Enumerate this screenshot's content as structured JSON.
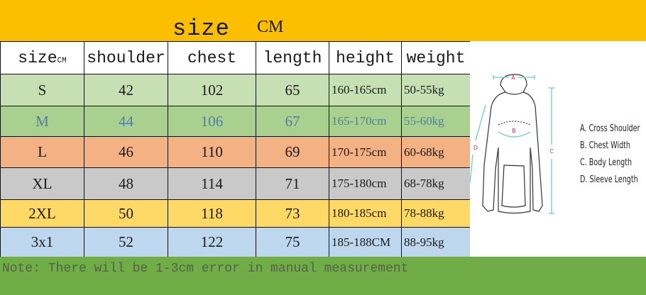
{
  "header": {
    "title": "size",
    "unit": "CM"
  },
  "table": {
    "columns": [
      {
        "label": "size",
        "sub": "CM"
      },
      {
        "label": "shoulder"
      },
      {
        "label": "chest"
      },
      {
        "label": "length"
      },
      {
        "label": "height"
      },
      {
        "label": "weight"
      }
    ],
    "rows": [
      {
        "size": "S",
        "shoulder": "42",
        "chest": "102",
        "length": "65",
        "height": "160-165cm",
        "weight": "50-55kg",
        "bg": "#c6e0b4",
        "color": "#1a1a1a"
      },
      {
        "size": "M",
        "shoulder": "44",
        "chest": "106",
        "length": "67",
        "height": "165-170cm",
        "weight": "55-60kg",
        "bg": "#a9d08e",
        "color": "#4f7ea3"
      },
      {
        "size": "L",
        "shoulder": "46",
        "chest": "110",
        "length": "69",
        "height": "170-175cm",
        "weight": "60-68kg",
        "bg": "#f4b183",
        "color": "#1a1a1a"
      },
      {
        "size": "XL",
        "shoulder": "48",
        "chest": "114",
        "length": "71",
        "height": "175-180cm",
        "weight": "68-78kg",
        "bg": "#c9c9c9",
        "color": "#1a1a1a"
      },
      {
        "size": "2XL",
        "shoulder": "50",
        "chest": "118",
        "length": "73",
        "height": "180-185cm",
        "weight": "78-88kg",
        "bg": "#ffd966",
        "color": "#1a1a1a"
      },
      {
        "size": "3x1",
        "shoulder": "52",
        "chest": "122",
        "length": "75",
        "height": "185-188CM",
        "weight": "88-95kg",
        "bg": "#bdd7ee",
        "color": "#1a1a1a"
      }
    ]
  },
  "diagram": {
    "marks": [
      "A",
      "B",
      "C",
      "D"
    ],
    "legend": [
      "A. Cross Shoulder",
      "B. Chest Width",
      "C. Body Length",
      "D. Sleeve Length"
    ]
  },
  "note": "Note: There will be 1-3cm error in manual measurement",
  "colors": {
    "top_band": "#fbbf00",
    "bottom_band": "#70ad47",
    "measure_line": "#7fd3cf",
    "mark_label": "#d0303a"
  }
}
